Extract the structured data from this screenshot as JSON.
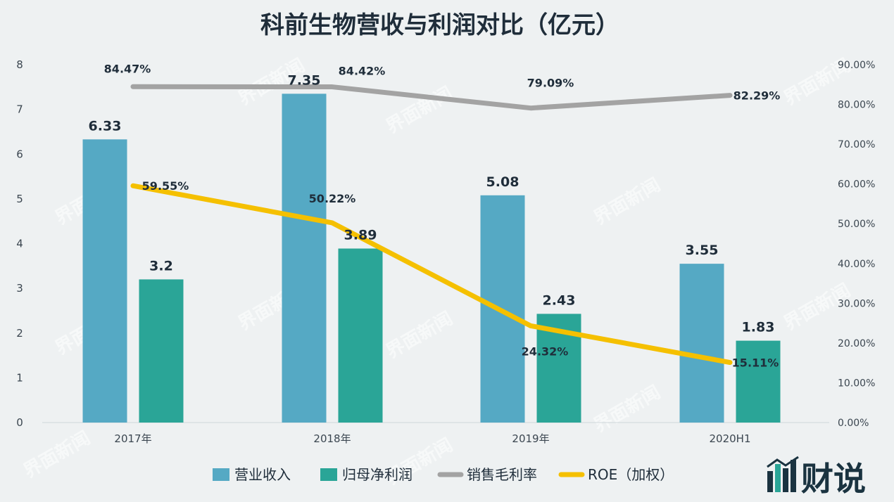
{
  "chart_data": {
    "type": "bar",
    "title": "科前生物营收与利润对比（亿元）",
    "categories": [
      "2017年",
      "2018年",
      "2019年",
      "2020H1"
    ],
    "ylim": [
      0,
      8
    ],
    "yticks": [
      "0",
      "1",
      "2",
      "3",
      "4",
      "5",
      "6",
      "7",
      "8"
    ],
    "y2lim": [
      0,
      90
    ],
    "y2ticks": [
      "0.00%",
      "10.00%",
      "20.00%",
      "30.00%",
      "40.00%",
      "50.00%",
      "60.00%",
      "70.00%",
      "80.00%",
      "90.00%"
    ],
    "series": [
      {
        "name": "营业收入",
        "kind": "bar",
        "color": "#55a9c4",
        "values": [
          6.33,
          7.35,
          5.08,
          3.55
        ],
        "labels": [
          "6.33",
          "7.35",
          "5.08",
          "3.55"
        ]
      },
      {
        "name": "归母净利润",
        "kind": "bar",
        "color": "#2aa597",
        "values": [
          3.2,
          3.89,
          2.43,
          1.83
        ],
        "labels": [
          "3.2",
          "3.89",
          "2.43",
          "1.83"
        ]
      },
      {
        "name": "销售毛利率",
        "kind": "line",
        "axis": "right",
        "color": "#a3a3a3",
        "values": [
          84.47,
          84.42,
          79.09,
          82.29
        ],
        "labels": [
          "84.47%",
          "84.42%",
          "79.09%",
          "82.29%"
        ]
      },
      {
        "name": "ROE（加权）",
        "kind": "line",
        "axis": "right",
        "color": "#f5c000",
        "values": [
          59.55,
          50.22,
          24.32,
          15.11
        ],
        "labels": [
          "59.55%",
          "50.22%",
          "24.32%",
          "15.11%"
        ]
      }
    ],
    "legend_position": "bottom",
    "grid": false
  },
  "watermark": {
    "brand": "界面新闻"
  },
  "logo": {
    "text": "财说"
  }
}
